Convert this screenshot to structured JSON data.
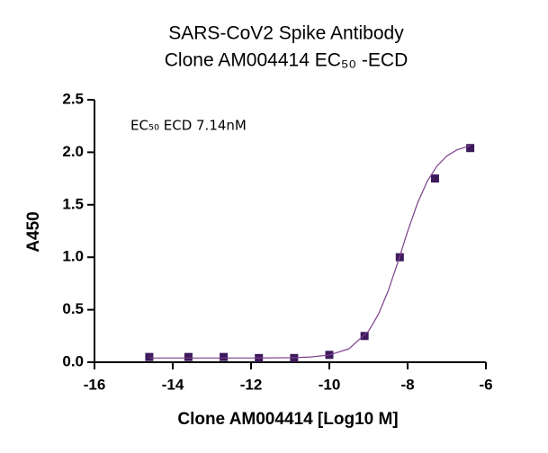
{
  "chart_data": {
    "type": "scatter",
    "title": [
      "SARS-CoV2 Spike Antibody",
      "Clone AM004414 EC₅₀ -ECD"
    ],
    "annotation": "EC₅₀ ECD 7.14nM",
    "x_label": "Clone AM004414 [Log10 M]",
    "y_label": "A450",
    "xlim": [
      -16,
      -6
    ],
    "ylim": [
      0,
      2.5
    ],
    "xticks": [
      -16,
      -14,
      -12,
      -10,
      -8,
      -6
    ],
    "yticks": [
      {
        "value": 0,
        "label": "0.0"
      },
      0.5,
      {
        "value": 1,
        "label": "1.0"
      },
      1.5,
      {
        "value": 2,
        "label": "2.0"
      },
      2.5
    ],
    "series": [
      {
        "color": "#3d1a5c",
        "x": [
          -14.6,
          -13.6,
          -12.7,
          -11.8,
          -10.9,
          -10.0,
          -9.1,
          -8.2,
          -7.3,
          -6.4
        ],
        "values": [
          0.05,
          0.05,
          0.05,
          0.04,
          0.04,
          0.07,
          0.25,
          1.0,
          1.75,
          2.04
        ]
      },
      {
        "color": "#7b3f8c",
        "line": true,
        "x": [
          -14.6,
          -12,
          -11,
          -10.5,
          -10,
          -9.5,
          -9,
          -8.75,
          -8.5,
          -8.25,
          -8,
          -7.75,
          -7.5,
          -7.25,
          -7,
          -6.75,
          -6.4
        ],
        "values": [
          0.04,
          0.04,
          0.043,
          0.049,
          0.069,
          0.128,
          0.295,
          0.454,
          0.676,
          0.952,
          1.246,
          1.513,
          1.723,
          1.869,
          1.964,
          2.021,
          2.064
        ]
      }
    ]
  }
}
